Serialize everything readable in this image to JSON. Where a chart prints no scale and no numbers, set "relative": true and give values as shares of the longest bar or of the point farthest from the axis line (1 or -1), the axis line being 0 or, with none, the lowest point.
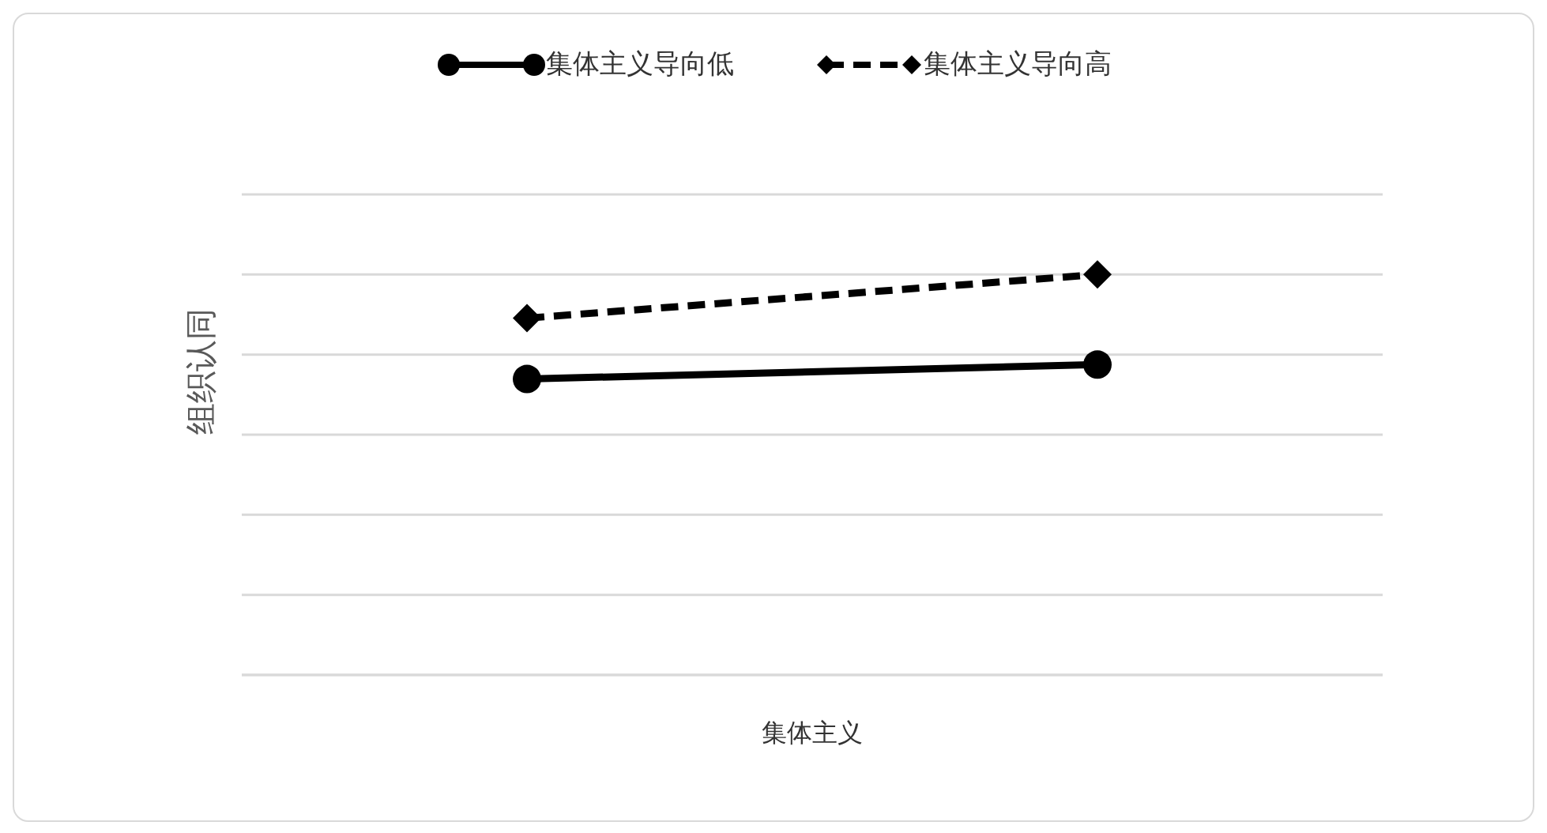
{
  "chart_data": {
    "type": "line",
    "xlabel": "集体主义",
    "ylabel": "组织认同",
    "categories": [
      null,
      null
    ],
    "relative": true,
    "grid": "y",
    "legend": "top",
    "series": [
      {
        "name": "集体主义导向低",
        "color": "#000000",
        "values": [
          0.739,
          0.775
        ],
        "marker": "circle",
        "line_style": "solid"
      },
      {
        "name": "集体主义导向高",
        "color": "#000000",
        "values": [
          0.891,
          1
        ],
        "marker": "diamond",
        "line_style": "dashed"
      }
    ]
  }
}
